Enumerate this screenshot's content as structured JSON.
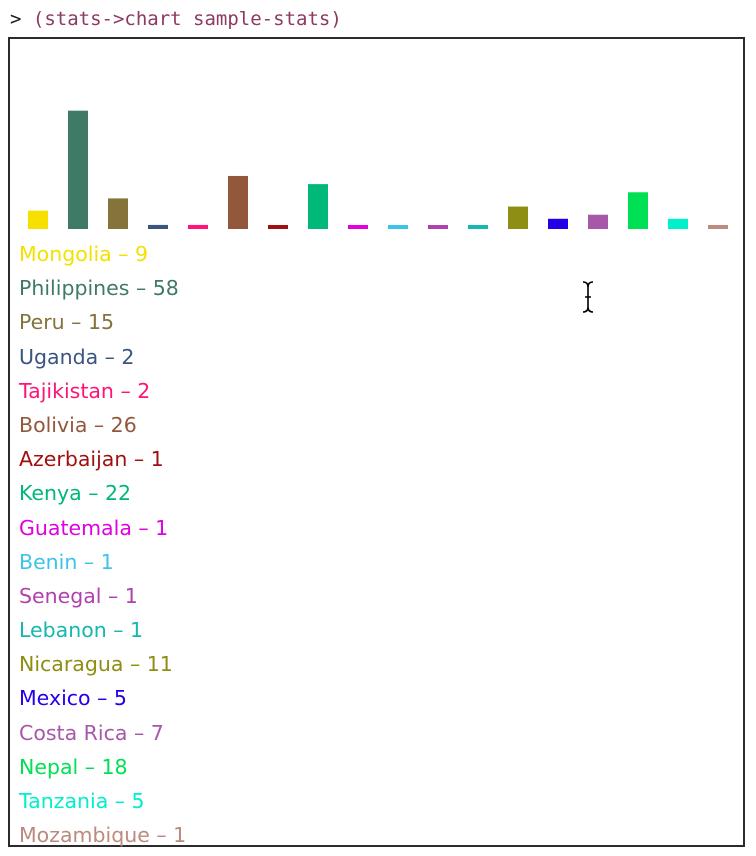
{
  "repl": {
    "prompt": ">",
    "command": "(stats->chart sample-stats)"
  },
  "chart_data": {
    "type": "bar",
    "categories": [
      "Mongolia",
      "Philippines",
      "Peru",
      "Uganda",
      "Tajikistan",
      "Bolivia",
      "Azerbaijan",
      "Kenya",
      "Guatemala",
      "Benin",
      "Senegal",
      "Lebanon",
      "Nicaragua",
      "Mexico",
      "Costa Rica",
      "Nepal",
      "Tanzania",
      "Mozambique"
    ],
    "values": [
      9,
      58,
      15,
      2,
      2,
      26,
      1,
      22,
      1,
      1,
      1,
      1,
      11,
      5,
      7,
      18,
      5,
      1
    ],
    "colors": [
      "#f5e000",
      "#3e7a66",
      "#84733b",
      "#3a5580",
      "#ff1477",
      "#93583b",
      "#a01010",
      "#00b878",
      "#e000e0",
      "#3cc4e8",
      "#b040b0",
      "#14b8b0",
      "#8e8e14",
      "#2200e8",
      "#a858a8",
      "#00e054",
      "#00f0cc",
      "#bc8a7e"
    ],
    "legend_separator": " – "
  }
}
